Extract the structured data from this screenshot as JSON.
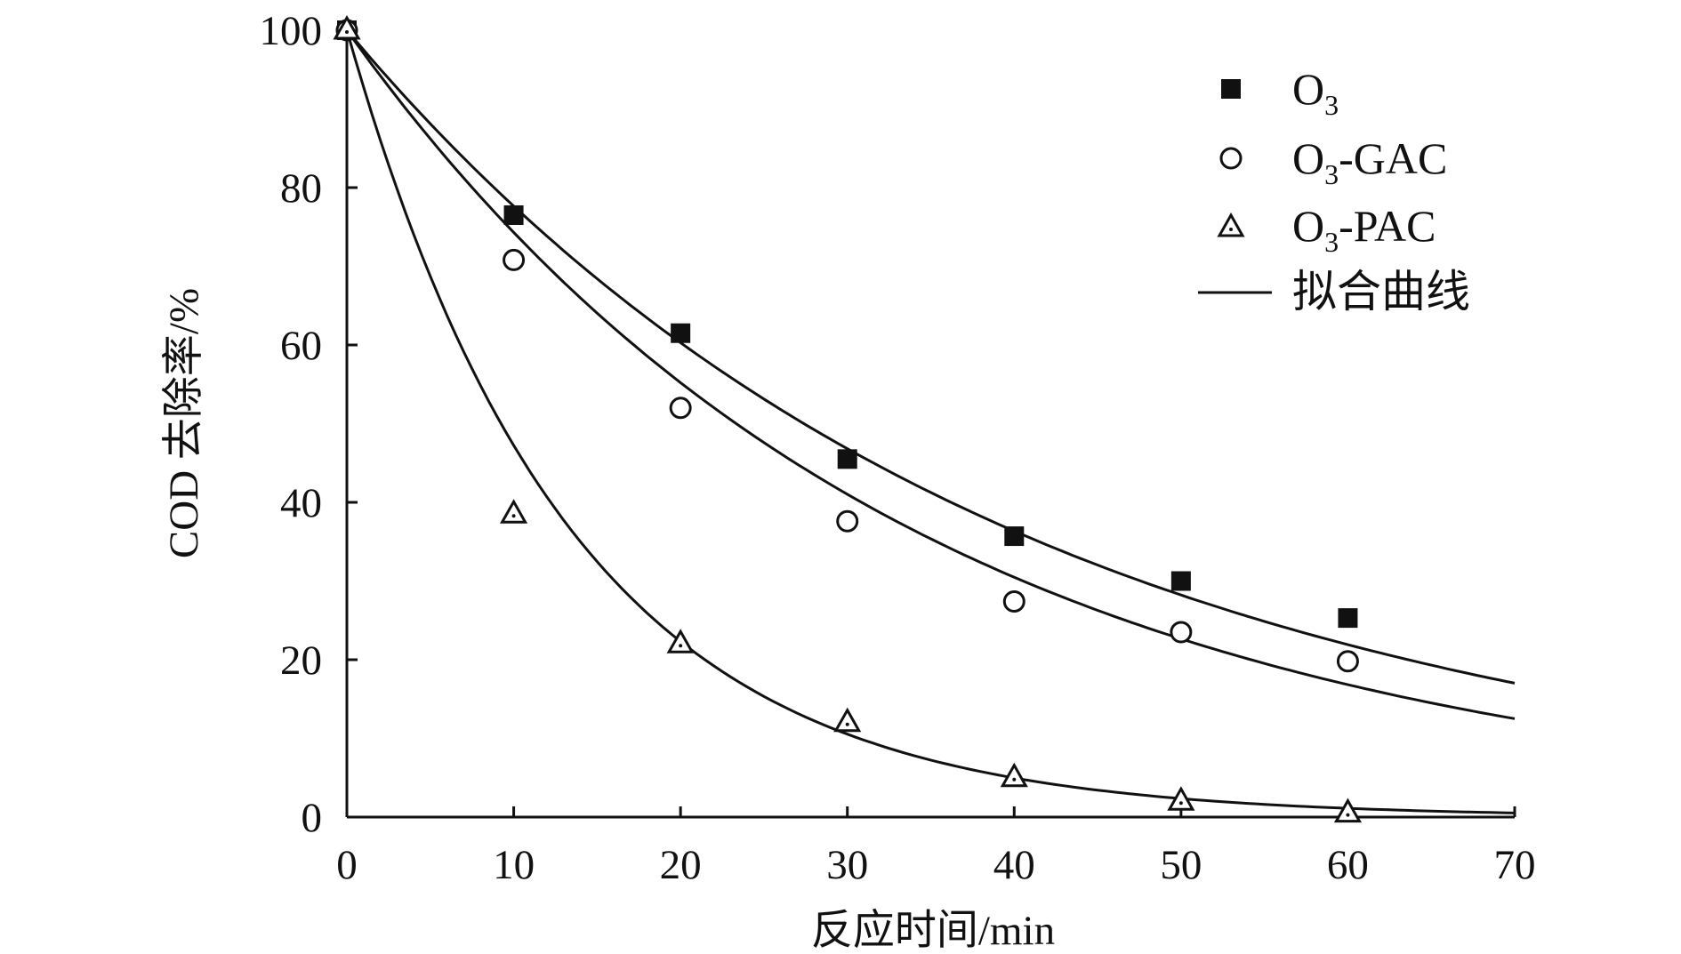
{
  "chart_data": {
    "type": "scatter",
    "xlabel": "反应时间/min",
    "ylabel": "COD 去除率/%",
    "xlim": [
      0,
      70
    ],
    "ylim": [
      0,
      100
    ],
    "xticks": [
      "0",
      "10",
      "20",
      "30",
      "40",
      "50",
      "60",
      "70"
    ],
    "yticks": [
      "0",
      "20",
      "40",
      "60",
      "80",
      "100"
    ],
    "grid": false,
    "legend_position": "top-right",
    "x": [
      0,
      10,
      20,
      30,
      40,
      50,
      60
    ],
    "series": [
      {
        "name": "O3",
        "name_main": "O",
        "name_sub": "3",
        "name_suffix": "",
        "marker": "filled-square",
        "values": [
          100,
          76.5,
          61.5,
          45.5,
          35.7,
          30.0,
          25.3
        ],
        "fit_k": 0.0253
      },
      {
        "name": "O3-GAC",
        "name_main": "O",
        "name_sub": "3",
        "name_suffix": "-GAC",
        "marker": "open-circle",
        "values": [
          100,
          70.8,
          52.0,
          37.6,
          27.4,
          23.5,
          19.8
        ],
        "fit_k": 0.0297
      },
      {
        "name": "O3-PAC",
        "name_main": "O",
        "name_sub": "3",
        "name_suffix": "-PAC",
        "marker": "open-triangle",
        "values": [
          100,
          38.5,
          22.0,
          12.0,
          5.0,
          2.0,
          0.5
        ],
        "fit_k": 0.075
      }
    ],
    "fit_legend": "拟合曲线",
    "color": "#111111"
  }
}
